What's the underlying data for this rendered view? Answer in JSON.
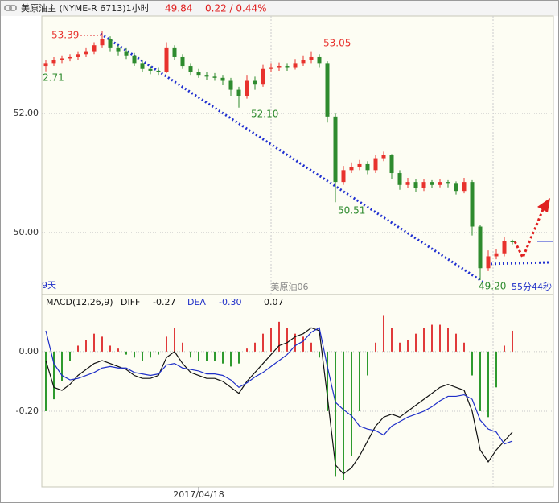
{
  "header": {
    "title": "美原油主 (NYME-R 6713)1小时",
    "price": "49.84",
    "change": "0.22 / 0.44%"
  },
  "chart_data": [
    {
      "type": "candlestick",
      "up_color": "#e8322d",
      "down_color": "#2e8b2e",
      "ylim": [
        48.97,
        53.64
      ],
      "yticks": [
        {
          "value": 52,
          "label": "52.00"
        },
        {
          "value": 50,
          "label": "50.00"
        }
      ],
      "grid": true,
      "open": [
        52.8,
        52.85,
        52.9,
        52.93,
        52.95,
        53.0,
        53.05,
        53.15,
        53.25,
        53.1,
        53.05,
        52.98,
        52.85,
        52.75,
        52.72,
        52.7,
        53.1,
        52.95,
        52.8,
        52.7,
        52.65,
        52.62,
        52.6,
        52.55,
        52.4,
        52.3,
        52.55,
        52.5,
        52.75,
        52.78,
        52.8,
        52.78,
        52.85,
        52.9,
        52.95,
        52.85,
        51.95,
        50.85,
        51.05,
        51.1,
        51.15,
        51.05,
        51.25,
        51.3,
        51.0,
        50.8,
        50.85,
        50.75,
        50.85,
        50.8,
        50.85,
        50.82,
        50.7,
        50.85,
        50.1,
        49.4,
        49.6,
        49.65,
        49.85
      ],
      "high": [
        52.9,
        52.95,
        52.98,
        53.0,
        53.05,
        53.1,
        53.2,
        53.39,
        53.3,
        53.15,
        53.1,
        53.02,
        52.9,
        52.8,
        52.78,
        53.2,
        53.15,
        53.0,
        52.85,
        52.75,
        52.7,
        52.68,
        52.65,
        52.6,
        52.45,
        52.65,
        52.62,
        52.82,
        52.85,
        52.86,
        52.85,
        52.92,
        52.98,
        53.05,
        53.0,
        52.88,
        52.0,
        51.12,
        51.18,
        51.22,
        51.2,
        51.3,
        51.36,
        51.32,
        51.05,
        50.92,
        50.9,
        50.9,
        50.88,
        50.9,
        50.88,
        50.86,
        50.92,
        50.88,
        50.12,
        49.7,
        49.72,
        49.92,
        49.88
      ],
      "low": [
        52.71,
        52.8,
        52.85,
        52.88,
        52.9,
        52.95,
        53.0,
        53.1,
        53.05,
        52.98,
        52.92,
        52.8,
        52.7,
        52.66,
        52.65,
        52.68,
        52.9,
        52.75,
        52.65,
        52.6,
        52.56,
        52.55,
        52.48,
        52.3,
        52.1,
        52.25,
        52.4,
        52.45,
        52.7,
        52.72,
        52.72,
        52.74,
        52.8,
        52.85,
        52.78,
        51.85,
        50.51,
        50.8,
        51.0,
        51.05,
        50.98,
        51.0,
        51.2,
        50.9,
        50.72,
        50.75,
        50.68,
        50.7,
        50.75,
        50.76,
        50.76,
        50.64,
        50.66,
        49.95,
        49.2,
        49.35,
        49.55,
        49.6,
        49.8
      ],
      "close": [
        52.85,
        52.9,
        52.93,
        52.95,
        53.0,
        53.05,
        53.15,
        53.25,
        53.1,
        53.05,
        52.98,
        52.85,
        52.75,
        52.72,
        52.7,
        53.1,
        52.95,
        52.8,
        52.7,
        52.65,
        52.62,
        52.6,
        52.55,
        52.4,
        52.3,
        52.55,
        52.5,
        52.75,
        52.78,
        52.8,
        52.78,
        52.85,
        52.9,
        52.95,
        52.85,
        51.95,
        50.85,
        51.05,
        51.1,
        51.15,
        51.05,
        51.25,
        51.3,
        51.0,
        50.8,
        50.85,
        50.75,
        50.85,
        50.8,
        50.85,
        50.82,
        50.7,
        50.85,
        50.1,
        49.4,
        49.6,
        49.65,
        49.85,
        49.84
      ],
      "annotations": [
        "53.39",
        "53.05",
        "52.10",
        "50.51",
        "49.20",
        "2.71"
      ],
      "footer_left": "9天",
      "footer_center": "美原油06",
      "footer_right": "55分44秒"
    },
    {
      "type": "macd",
      "title": "MACD(12,26,9)",
      "readout": {
        "diff": "-0.27",
        "dea": "-0.30",
        "macd": "0.07"
      },
      "ylim": [
        -0.454,
        0.186
      ],
      "yticks": [
        {
          "value": 0,
          "label": "0.00"
        },
        {
          "value": -0.2,
          "label": "-0.20"
        }
      ],
      "grid": true,
      "categories": [
        null,
        null,
        null,
        null,
        null,
        null,
        null,
        null,
        null,
        null,
        null,
        null,
        null,
        null,
        null,
        null,
        null,
        null,
        null,
        "2017/04/18",
        null,
        null,
        null,
        null,
        null,
        null,
        null,
        null,
        null,
        null,
        null,
        null,
        null,
        null,
        null,
        null,
        null,
        null,
        null,
        null,
        null,
        null,
        null,
        null,
        null,
        null,
        null,
        null,
        null,
        null,
        null,
        null,
        null,
        null,
        null,
        null,
        null,
        null,
        null
      ],
      "histogram": {
        "up_color": "#e03a3a",
        "down_color": "#2e9a2e",
        "values": [
          -0.2,
          -0.16,
          -0.1,
          -0.03,
          0.02,
          0.04,
          0.06,
          0.05,
          0.02,
          0.01,
          -0.01,
          -0.02,
          -0.03,
          -0.02,
          -0.01,
          0.05,
          0.08,
          0.03,
          -0.02,
          -0.03,
          -0.03,
          -0.03,
          -0.04,
          -0.05,
          -0.04,
          0.01,
          0.03,
          0.06,
          0.08,
          0.1,
          0.08,
          0.06,
          0.05,
          0.03,
          -0.02,
          -0.2,
          -0.42,
          -0.43,
          -0.35,
          -0.2,
          -0.08,
          0.03,
          0.12,
          0.08,
          0.03,
          0.04,
          0.06,
          0.08,
          0.09,
          0.09,
          0.08,
          0.06,
          0.03,
          -0.08,
          -0.2,
          -0.22,
          -0.12,
          0.02,
          0.07
        ]
      },
      "series": [
        {
          "name": "DIFF",
          "color": "#111111",
          "values": [
            -0.03,
            -0.12,
            -0.13,
            -0.11,
            -0.08,
            -0.06,
            -0.04,
            -0.03,
            -0.04,
            -0.05,
            -0.06,
            -0.08,
            -0.09,
            -0.09,
            -0.08,
            -0.02,
            0.0,
            -0.04,
            -0.07,
            -0.08,
            -0.09,
            -0.09,
            -0.1,
            -0.12,
            -0.14,
            -0.1,
            -0.07,
            -0.04,
            -0.01,
            0.02,
            0.03,
            0.05,
            0.06,
            0.08,
            0.07,
            -0.15,
            -0.38,
            -0.41,
            -0.39,
            -0.35,
            -0.3,
            -0.25,
            -0.22,
            -0.21,
            -0.22,
            -0.2,
            -0.18,
            -0.16,
            -0.14,
            -0.12,
            -0.11,
            -0.12,
            -0.13,
            -0.2,
            -0.33,
            -0.37,
            -0.33,
            -0.3,
            -0.27
          ]
        },
        {
          "name": "DEA",
          "color": "#1f2fc8",
          "values": [
            0.07,
            -0.04,
            -0.08,
            -0.095,
            -0.09,
            -0.08,
            -0.07,
            -0.055,
            -0.05,
            -0.055,
            -0.055,
            -0.07,
            -0.075,
            -0.08,
            -0.075,
            -0.045,
            -0.04,
            -0.055,
            -0.06,
            -0.065,
            -0.075,
            -0.075,
            -0.08,
            -0.095,
            -0.12,
            -0.105,
            -0.085,
            -0.07,
            -0.05,
            -0.03,
            -0.01,
            0.02,
            0.035,
            0.065,
            0.08,
            -0.05,
            -0.17,
            -0.195,
            -0.215,
            -0.25,
            -0.26,
            -0.265,
            -0.28,
            -0.25,
            -0.235,
            -0.22,
            -0.21,
            -0.2,
            -0.185,
            -0.165,
            -0.15,
            -0.15,
            -0.145,
            -0.16,
            -0.23,
            -0.26,
            -0.27,
            -0.31,
            -0.3
          ]
        }
      ]
    }
  ]
}
